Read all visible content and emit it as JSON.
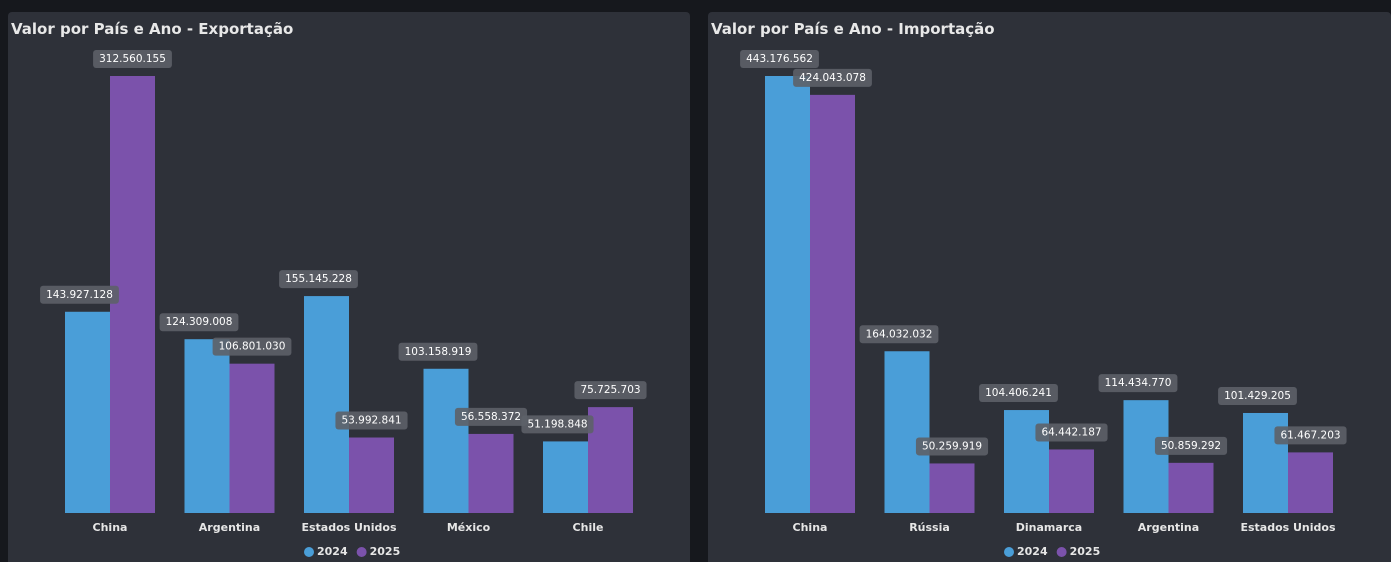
{
  "chart_data": [
    {
      "type": "bar",
      "title": "Valor por País e Ano - Exportação",
      "categories": [
        "China",
        "Argentina",
        "Estados Unidos",
        "México",
        "Chile"
      ],
      "series": [
        {
          "name": "2024",
          "color": "#4a9ed8",
          "values": [
            143927128,
            124309008,
            155145228,
            103158919,
            51198848
          ],
          "value_labels": [
            "143.927.128",
            "124.309.008",
            "155.145.228",
            "103.158.919",
            "51.198.848"
          ]
        },
        {
          "name": "2025",
          "color": "#7b52ab",
          "values": [
            312560155,
            106801030,
            53992841,
            56558372,
            75725703
          ],
          "value_labels": [
            "312.560.155",
            "106.801.030",
            "53.992.841",
            "56.558.372",
            "75.725.703"
          ]
        }
      ]
    },
    {
      "type": "bar",
      "title": "Valor por País e Ano - Importação",
      "categories": [
        "China",
        "Rússia",
        "Dinamarca",
        "Argentina",
        "Estados Unidos"
      ],
      "series": [
        {
          "name": "2024",
          "color": "#4a9ed8",
          "values": [
            443176562,
            164032032,
            104406241,
            114434770,
            101429205
          ],
          "value_labels": [
            "443.176.562",
            "164.032.032",
            "104.406.241",
            "114.434.770",
            "101.429.205"
          ]
        },
        {
          "name": "2025",
          "color": "#7b52ab",
          "values": [
            424043078,
            50259919,
            64442187,
            50859292,
            61467203
          ],
          "value_labels": [
            "424.043.078",
            "50.259.919",
            "64.442.187",
            "50.859.292",
            "61.467.203"
          ]
        }
      ]
    }
  ]
}
